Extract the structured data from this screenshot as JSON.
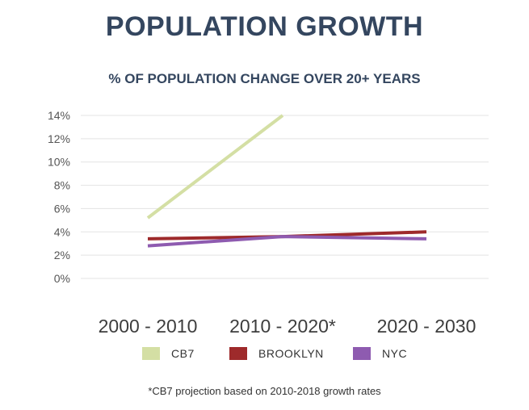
{
  "chart_data": {
    "type": "line",
    "title": "POPULATION GROWTH",
    "subtitle": "% OF POPULATION CHANGE OVER 20+ YEARS",
    "categories": [
      "2000 - 2010",
      "2010 - 2020*",
      "2020 - 2030"
    ],
    "yticks": [
      "0%",
      "2%",
      "4%",
      "6%",
      "8%",
      "10%",
      "12%",
      "14%"
    ],
    "ylim": [
      0,
      14
    ],
    "grid": true,
    "legend_position": "bottom",
    "series": [
      {
        "name": "CB7",
        "color": "#d4dfa4",
        "values": [
          5.2,
          14,
          null
        ]
      },
      {
        "name": "BROOKLYN",
        "color": "#9e2a2b",
        "values": [
          3.4,
          3.6,
          4.0
        ]
      },
      {
        "name": "NYC",
        "color": "#8e5bb0",
        "values": [
          2.8,
          3.6,
          3.4
        ]
      }
    ],
    "footnote": "*CB7 projection based on 2010-2018 growth rates"
  }
}
